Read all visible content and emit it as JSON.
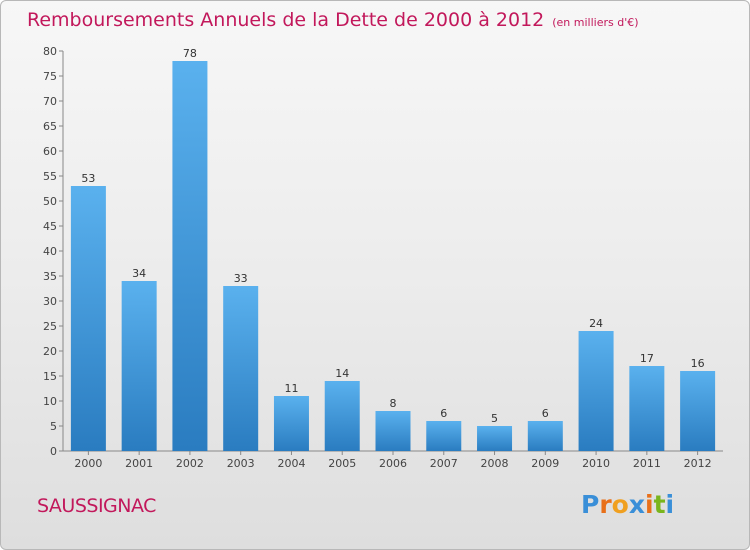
{
  "header": {
    "title": "Remboursements Annuels de la Dette de 2000 à 2012",
    "unit": "(en milliers d'€)"
  },
  "footer": {
    "commune": "SAUSSIGNAC",
    "brand": "Proxiti"
  },
  "colors": {
    "title": "#c2185b",
    "bar_top": "#5ab1ee",
    "bar_bottom": "#2a7cc0",
    "brand_letters": [
      "#3a8fd8",
      "#e8701a",
      "#f0a020",
      "#3a8fd8",
      "#e8701a",
      "#7ab51d",
      "#3a8fd8"
    ]
  },
  "chart_data": {
    "type": "bar",
    "title": "Remboursements Annuels de la Dette de 2000 à 2012",
    "categories": [
      "2000",
      "2001",
      "2002",
      "2003",
      "2004",
      "2005",
      "2006",
      "2007",
      "2008",
      "2009",
      "2010",
      "2011",
      "2012"
    ],
    "values": [
      53,
      34,
      78,
      33,
      11,
      14,
      8,
      6,
      5,
      6,
      24,
      17,
      16
    ],
    "ylim": [
      0,
      80
    ],
    "yticks": [
      0,
      5,
      10,
      15,
      20,
      25,
      30,
      35,
      40,
      45,
      50,
      55,
      60,
      65,
      70,
      75,
      80
    ],
    "grid": false,
    "legend": "none"
  }
}
